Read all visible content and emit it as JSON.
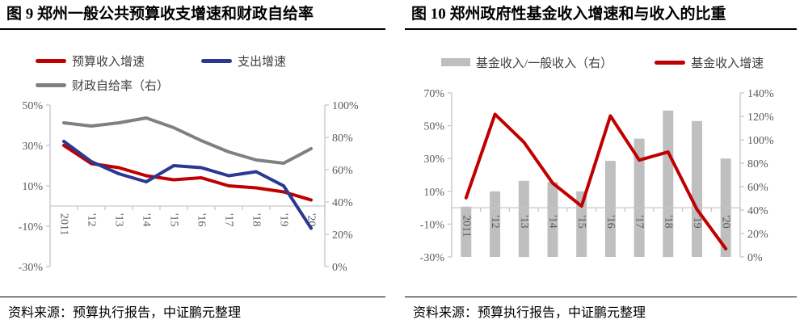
{
  "style": {
    "axis_color": "#c6c6c6",
    "tick_color": "#595959",
    "red": "#c00000",
    "blue": "#2c3792",
    "gray_line": "#808080",
    "bar_gray": "#bfbfbf"
  },
  "chart_data": [
    {
      "type": "line",
      "title": "图 9  郑州一般公共预算收支增速和财政自给率",
      "source": "资料来源：预算执行报告，中证鹏元整理",
      "legend_position": "top",
      "grid": false,
      "categories": [
        "2011",
        "'12",
        "'13",
        "'14",
        "'15",
        "'16",
        "'17",
        "'18",
        "'19",
        "'20"
      ],
      "left_axis": {
        "min": -30,
        "max": 50,
        "ticks": [
          "50%",
          "30%",
          "10%",
          "-10%",
          "-30%"
        ]
      },
      "right_axis": {
        "min": 0,
        "max": 100,
        "ticks": [
          "100%",
          "80%",
          "60%",
          "40%",
          "20%",
          "0%"
        ]
      },
      "series": [
        {
          "key": "budget-revenue-growth",
          "name": "预算收入增速",
          "type": "line",
          "axis": "left",
          "color": "#c00000",
          "values": [
            30,
            21,
            19,
            15,
            13,
            14,
            10,
            9,
            7,
            3
          ]
        },
        {
          "key": "expenditure-growth",
          "name": "支出增速",
          "type": "line",
          "axis": "left",
          "color": "#2c3792",
          "values": [
            32,
            22,
            16,
            12,
            20,
            19,
            15,
            17,
            10,
            -11
          ]
        },
        {
          "key": "fiscal-self-sufficiency",
          "name": "财政自给率（右）",
          "type": "line",
          "axis": "right",
          "color": "#808080",
          "values": [
            89,
            87,
            89,
            92,
            86,
            78,
            71,
            66,
            64,
            73
          ]
        }
      ]
    },
    {
      "type": "bar",
      "title": "图 10  郑州政府性基金收入增速和与收入的比重",
      "source": "资料来源：预算执行报告，中证鹏元整理",
      "legend_position": "top",
      "grid": false,
      "categories": [
        "2011",
        "'12",
        "'13",
        "'14",
        "'15",
        "'16",
        "'17",
        "'18",
        "'19",
        "'20"
      ],
      "left_axis": {
        "min": -30,
        "max": 70,
        "ticks": [
          "70%",
          "50%",
          "30%",
          "10%",
          "-10%",
          "-30%"
        ]
      },
      "right_axis": {
        "min": 0,
        "max": 140,
        "ticks": [
          "140%",
          "120%",
          "100%",
          "80%",
          "60%",
          "40%",
          "20%",
          "0%"
        ]
      },
      "series": [
        {
          "key": "fund-revenue-ratio",
          "name": "基金收入/一般收入（右）",
          "type": "bar",
          "axis": "right",
          "color": "#bfbfbf",
          "values": [
            43,
            56,
            65,
            64,
            56,
            82,
            101,
            125,
            116,
            84
          ]
        },
        {
          "key": "fund-revenue-growth",
          "name": "基金收入增速",
          "type": "line",
          "axis": "left",
          "color": "#c00000",
          "values": [
            6,
            57,
            40,
            15,
            1,
            56,
            29,
            34,
            -1,
            -25
          ]
        }
      ]
    }
  ]
}
